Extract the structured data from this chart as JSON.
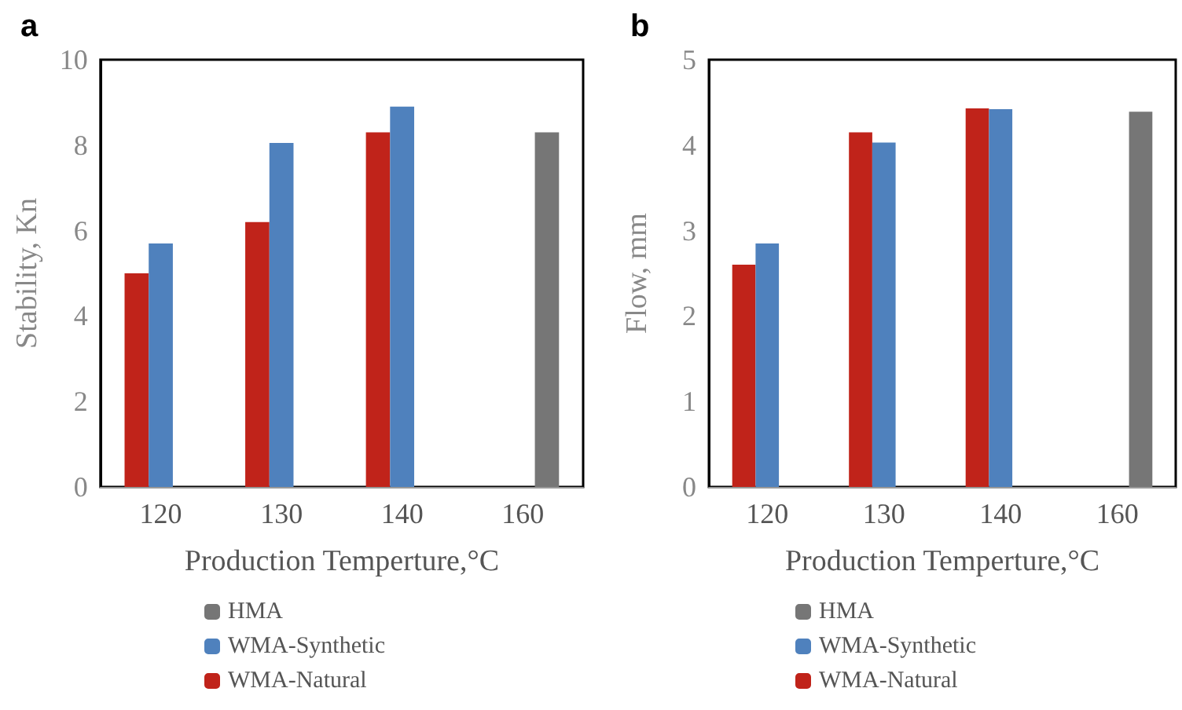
{
  "chart_data": [
    {
      "type": "bar",
      "title": "a",
      "xlabel": "Production Temperture,°C",
      "ylabel": "Stability, Kn",
      "categories": [
        "120",
        "130",
        "140",
        "160"
      ],
      "series": [
        {
          "name": "WMA-Natural",
          "color": "#c0231a",
          "values": [
            5.0,
            6.2,
            8.3,
            null
          ]
        },
        {
          "name": "WMA-Synthetic",
          "color": "#4f81bd",
          "values": [
            5.7,
            8.05,
            8.9,
            null
          ]
        },
        {
          "name": "HMA",
          "color": "#767676",
          "values": [
            null,
            null,
            null,
            8.3
          ]
        }
      ],
      "ylim": [
        0,
        10
      ],
      "yticks": [
        0,
        2,
        4,
        6,
        8,
        10
      ],
      "grid": false,
      "legend": "bottom"
    },
    {
      "type": "bar",
      "title": "b",
      "xlabel": "Production Temperture,°C",
      "ylabel": "Flow, mm",
      "categories": [
        "120",
        "130",
        "140",
        "160"
      ],
      "series": [
        {
          "name": "WMA-Natural",
          "color": "#c0231a",
          "values": [
            2.6,
            4.15,
            4.43,
            null
          ]
        },
        {
          "name": "WMA-Synthetic",
          "color": "#4f81bd",
          "values": [
            2.85,
            4.03,
            4.42,
            null
          ]
        },
        {
          "name": "HMA",
          "color": "#767676",
          "values": [
            null,
            null,
            null,
            4.39
          ]
        }
      ],
      "ylim": [
        0,
        5
      ],
      "yticks": [
        0,
        1,
        2,
        3,
        4,
        5
      ],
      "grid": false,
      "legend": "bottom"
    }
  ]
}
